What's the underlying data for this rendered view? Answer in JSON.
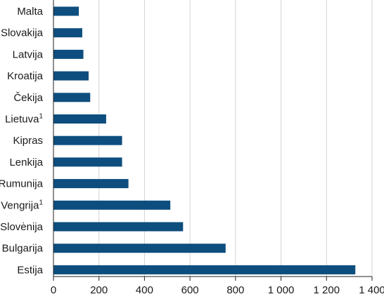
{
  "chart_data": {
    "type": "bar",
    "orientation": "horizontal",
    "categories": [
      "Malta",
      "Slovakija",
      "Latvija",
      "Kroatija",
      "Čekija",
      "Lietuva¹",
      "Kipras",
      "Lenkija",
      "Rumunija",
      "Vengrija¹",
      "Slovėnija",
      "Bulgarija",
      "Estija"
    ],
    "values": [
      110,
      125,
      130,
      153,
      160,
      230,
      300,
      300,
      328,
      512,
      568,
      755,
      1325
    ],
    "tick_labels": [
      "0",
      "200",
      "400",
      "600",
      "800",
      "1 000",
      "1 200",
      "1 400"
    ],
    "xlim": [
      0,
      1400
    ],
    "xstep": 200,
    "grid": "vertical",
    "bar_color": "#0d4e7e",
    "title": "",
    "xlabel": "",
    "ylabel": ""
  }
}
